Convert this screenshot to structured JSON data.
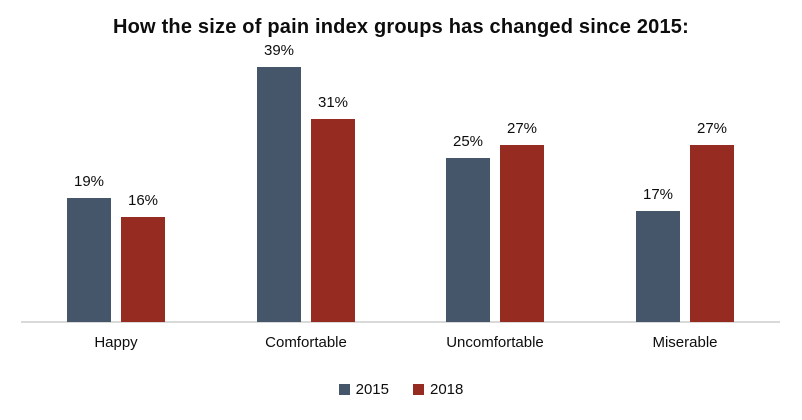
{
  "chart_data": {
    "type": "bar",
    "title": "How the size of pain index groups has changed since 2015:",
    "categories": [
      "Happy",
      "Comfortable",
      "Uncomfortable",
      "Miserable"
    ],
    "series": [
      {
        "name": "2015",
        "color": "#45556A",
        "values": [
          19,
          39,
          25,
          17
        ]
      },
      {
        "name": "2018",
        "color": "#962B22",
        "values": [
          16,
          31,
          27,
          27
        ]
      }
    ],
    "value_suffix": "%",
    "ylim": [
      0,
      40
    ],
    "grid": false,
    "legend_position": "bottom",
    "axis_line_color": "#D9D9D9",
    "background_color": "#FFFFFF"
  }
}
